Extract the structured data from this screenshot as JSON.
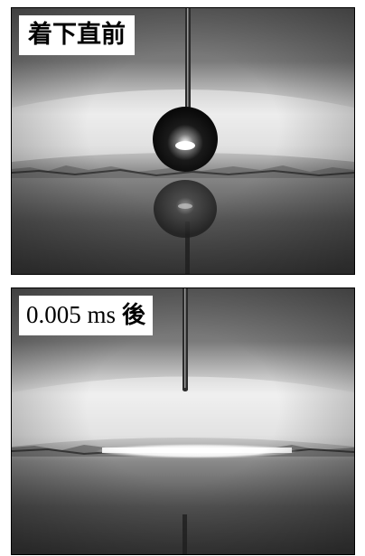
{
  "panels": [
    {
      "label": "着下直前"
    },
    {
      "time": "0.005 ms",
      "suffix": "後"
    }
  ]
}
